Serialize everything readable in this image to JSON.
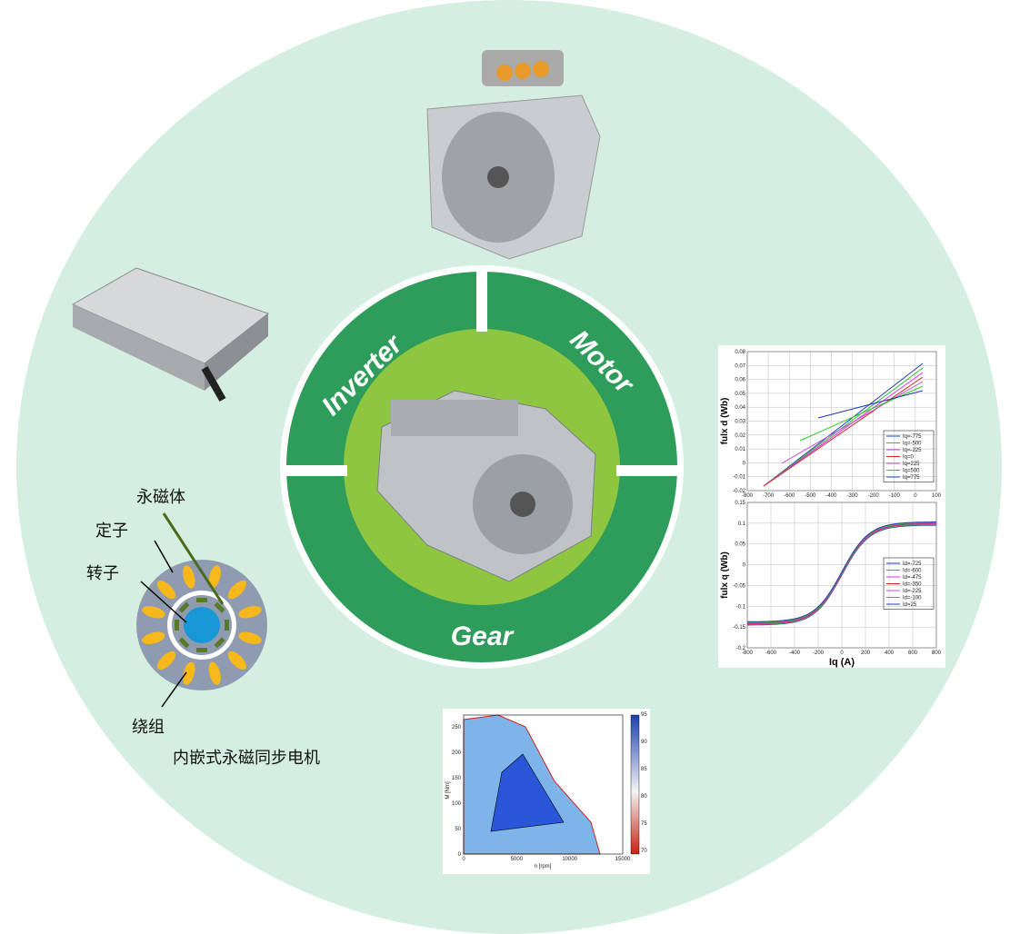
{
  "center": {
    "segments": [
      "Inverter",
      "Motor",
      "Gear"
    ]
  },
  "motor_diagram": {
    "labels": {
      "magnet": "永磁体",
      "stator": "定子",
      "rotor": "转子",
      "winding": "绕组"
    },
    "caption": "内嵌式永磁同步电机"
  },
  "flux_d_chart": {
    "y_label": "fulx d (Wb)",
    "yticks": [
      "0.08",
      "0.07",
      "0.06",
      "0.05",
      "0.04",
      "0.03",
      "0.02",
      "0.01",
      "0",
      "-0.01",
      "-0.02"
    ],
    "xticks": [
      "-800",
      "-700",
      "-600",
      "-500",
      "-400",
      "-300",
      "-200",
      "-100",
      "0",
      "100"
    ],
    "legend": [
      "Iq=-775",
      "Iq=-500",
      "Iq=-225",
      "Iq=0",
      "Iq=225",
      "Iq=500",
      "Iq=775"
    ]
  },
  "flux_q_chart": {
    "y_label": "fulx q (Wb)",
    "x_label": "Iq (A)",
    "yticks": [
      "0.15",
      "0.1",
      "0.05",
      "0",
      "-0.05",
      "-0.1",
      "-0.15",
      "-0.2"
    ],
    "xticks": [
      "-800",
      "-600",
      "-400",
      "-200",
      "0",
      "200",
      "400",
      "600",
      "800"
    ],
    "legend": [
      "Id=-725",
      "Id=-600",
      "Id=-475",
      "Id=-350",
      "Id=-225",
      "Id=-100",
      "Id=25"
    ]
  },
  "efficiency_map": {
    "y_label": "M [Nm]",
    "x_label": "n [rpm]",
    "yticks": [
      "0",
      "50",
      "100",
      "150",
      "200",
      "250"
    ],
    "xticks": [
      "0",
      "5000",
      "10000",
      "15000"
    ],
    "colorbar_ticks": [
      "70",
      "75",
      "80",
      "85",
      "90",
      "95"
    ]
  }
}
